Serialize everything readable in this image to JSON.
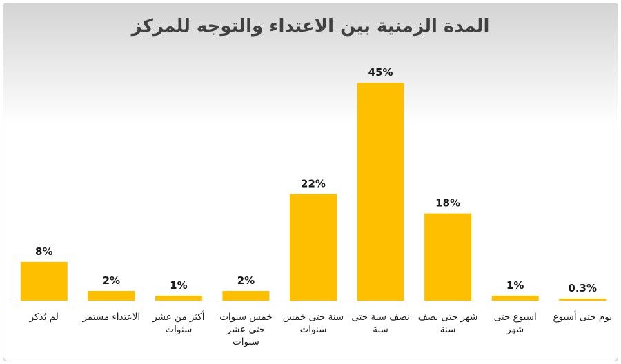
{
  "chart_data": {
    "type": "bar",
    "title": "المدة الزمنية بين الاعتداء والتوجه للمركز",
    "xlabel": "",
    "ylabel": "",
    "ylim": [
      0,
      50
    ],
    "grid": false,
    "legend": "none",
    "bar_color": "#fdbf00",
    "categories": [
      [
        "لم يُذكر"
      ],
      [
        "الاعتداء مستمر"
      ],
      [
        "أكثر من عشر",
        "سنوات"
      ],
      [
        "خمس سنوات",
        "حتى عشر",
        "سنوات"
      ],
      [
        "سنة حتى خمس",
        "سنوات"
      ],
      [
        "نصف سنة حتى",
        "سنة"
      ],
      [
        "شهر حتى نصف",
        "سنة"
      ],
      [
        "اسبوع حتى",
        "شهر"
      ],
      [
        "يوم حتى أسبوع"
      ]
    ],
    "values": [
      8,
      2,
      1,
      2,
      22,
      45,
      18,
      1,
      0.3
    ],
    "value_labels": [
      "8%",
      "2%",
      "1%",
      "2%",
      "22%",
      "45%",
      "18%",
      "1%",
      "0.3%"
    ]
  }
}
